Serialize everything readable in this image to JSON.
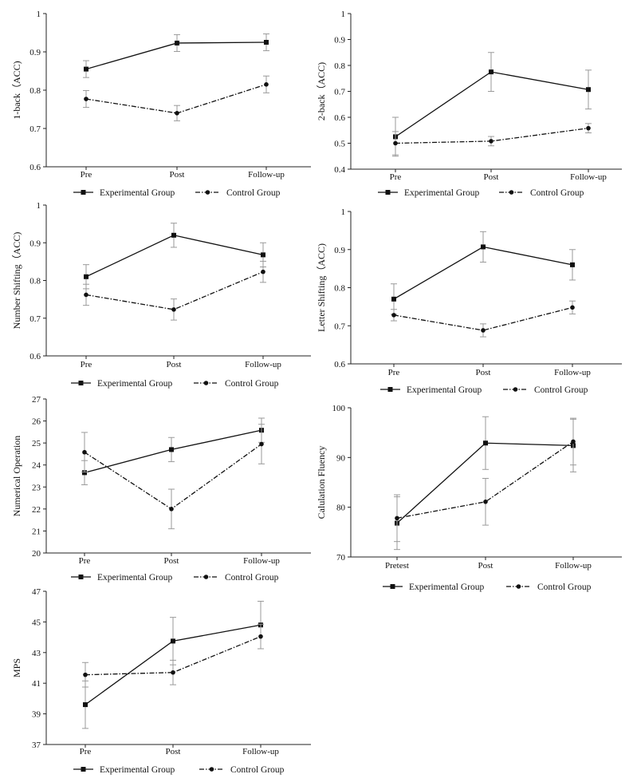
{
  "legend": {
    "experimental": "Experimental Group",
    "control": "Control Group"
  },
  "colors": {
    "line": "#111111",
    "error": "#9a9a9a"
  },
  "chart_data": [
    {
      "type": "line",
      "ylabel": "1-back（ACC)",
      "categories": [
        "Pre",
        "Post",
        "Follow-up"
      ],
      "ylim": [
        0.6,
        1
      ],
      "yticks": [
        "0.6",
        "0.7",
        "0.8",
        "0.9",
        "1"
      ],
      "series": [
        {
          "name": "Experimental Group",
          "values": [
            0.855,
            0.923,
            0.925
          ],
          "errors": [
            0.022,
            0.022,
            0.022
          ]
        },
        {
          "name": "Control Group",
          "values": [
            0.777,
            0.74,
            0.815
          ],
          "errors": [
            0.022,
            0.02,
            0.022
          ]
        }
      ]
    },
    {
      "type": "line",
      "ylabel": "2-back（ACC)",
      "categories": [
        "Pre",
        "Post",
        "Follow-up"
      ],
      "ylim": [
        0.4,
        1
      ],
      "yticks": [
        "0.4",
        "0.5",
        "0.6",
        "0.7",
        "0.8",
        "0.9",
        "1"
      ],
      "series": [
        {
          "name": "Experimental Group",
          "values": [
            0.525,
            0.775,
            0.707
          ],
          "errors": [
            0.075,
            0.075,
            0.075
          ]
        },
        {
          "name": "Control Group",
          "values": [
            0.5,
            0.508,
            0.558
          ],
          "errors": [
            0.045,
            0.018,
            0.018
          ]
        }
      ]
    },
    {
      "type": "line",
      "ylabel": "Number Shifting（ACC)",
      "categories": [
        "Pre",
        "Post",
        "Follow-up"
      ],
      "ylim": [
        0.6,
        1
      ],
      "yticks": [
        "0.6",
        "0.7",
        "0.8",
        "0.9",
        "1"
      ],
      "series": [
        {
          "name": "Experimental Group",
          "values": [
            0.81,
            0.92,
            0.868
          ],
          "errors": [
            0.032,
            0.032,
            0.032
          ]
        },
        {
          "name": "Control Group",
          "values": [
            0.762,
            0.723,
            0.823
          ],
          "errors": [
            0.028,
            0.028,
            0.028
          ]
        }
      ]
    },
    {
      "type": "line",
      "ylabel": "Letter Shifting（ACC)",
      "categories": [
        "Pre",
        "Post",
        "Follow-up"
      ],
      "ylim": [
        0.6,
        1
      ],
      "yticks": [
        "0.6",
        "0.7",
        "0.8",
        "0.9",
        "1"
      ],
      "series": [
        {
          "name": "Experimental Group",
          "values": [
            0.77,
            0.907,
            0.86
          ],
          "errors": [
            0.04,
            0.04,
            0.04
          ]
        },
        {
          "name": "Control Group",
          "values": [
            0.728,
            0.688,
            0.748
          ],
          "errors": [
            0.015,
            0.017,
            0.017
          ]
        }
      ]
    },
    {
      "type": "line",
      "ylabel": "Numerical Operation",
      "categories": [
        "Pre",
        "Post",
        "Follow-up"
      ],
      "ylim": [
        20,
        27
      ],
      "yticks": [
        "20",
        "21",
        "22",
        "23",
        "24",
        "25",
        "26",
        "27"
      ],
      "series": [
        {
          "name": "Experimental Group",
          "values": [
            23.65,
            24.7,
            25.58
          ],
          "errors": [
            0.55,
            0.55,
            0.55
          ]
        },
        {
          "name": "Control Group",
          "values": [
            24.58,
            22.0,
            24.95
          ],
          "errors": [
            0.9,
            0.9,
            0.9
          ]
        }
      ]
    },
    {
      "type": "line",
      "ylabel": "Calulation Fluency",
      "categories": [
        "Pretest",
        "Post",
        "Follow-up"
      ],
      "ylim": [
        70,
        100
      ],
      "yticks": [
        "70",
        "80",
        "90",
        "100"
      ],
      "series": [
        {
          "name": "Experimental Group",
          "values": [
            76.8,
            92.9,
            92.4
          ],
          "errors": [
            5.3,
            5.3,
            5.3
          ]
        },
        {
          "name": "Control Group",
          "values": [
            77.8,
            81.1,
            93.2
          ],
          "errors": [
            4.7,
            4.7,
            4.7
          ]
        }
      ]
    },
    {
      "type": "line",
      "ylabel": "MPS",
      "categories": [
        "Pre",
        "Post",
        "Follow-up"
      ],
      "ylim": [
        37,
        47
      ],
      "yticks": [
        "37",
        "39",
        "41",
        "43",
        "45",
        "47"
      ],
      "series": [
        {
          "name": "Experimental Group",
          "values": [
            39.6,
            43.75,
            44.8
          ],
          "errors": [
            1.55,
            1.55,
            1.55
          ]
        },
        {
          "name": "Control Group",
          "values": [
            41.55,
            41.7,
            44.05
          ],
          "errors": [
            0.8,
            0.8,
            0.8
          ]
        }
      ]
    }
  ]
}
